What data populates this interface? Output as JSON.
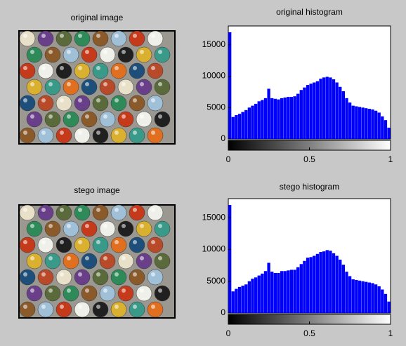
{
  "chart_data": [
    {
      "type": "image",
      "title": "original image"
    },
    {
      "type": "histogram",
      "title": "original histogram",
      "color": "#0000ff",
      "bins": [
        0,
        0.02,
        0.04,
        0.06,
        0.08,
        0.1,
        0.12,
        0.14,
        0.16,
        0.18,
        0.2,
        0.22,
        0.24,
        0.26,
        0.28,
        0.3,
        0.32,
        0.34,
        0.36,
        0.38,
        0.4,
        0.42,
        0.44,
        0.46,
        0.48,
        0.5,
        0.52,
        0.54,
        0.56,
        0.58,
        0.6,
        0.62,
        0.64,
        0.66,
        0.68,
        0.7,
        0.72,
        0.74,
        0.76,
        0.78,
        0.8,
        0.82,
        0.84,
        0.86,
        0.88,
        0.9,
        0.92,
        0.94,
        0.96,
        0.98,
        1
      ],
      "values": [
        17000,
        3500,
        3800,
        4000,
        4300,
        4600,
        5000,
        5300,
        5600,
        6000,
        6200,
        6500,
        8000,
        6500,
        6400,
        6300,
        6500,
        6600,
        6700,
        6700,
        6800,
        7200,
        7800,
        8200,
        8600,
        8800,
        9000,
        9200,
        9600,
        9800,
        9900,
        9800,
        9500,
        9000,
        8300,
        7600,
        6500,
        5800,
        5300,
        5200,
        5100,
        5000,
        4900,
        4800,
        4700,
        4500,
        4200,
        3600,
        3000,
        1800
      ],
      "xlim": [
        0,
        1
      ],
      "xticks": [
        0,
        0.5,
        1
      ],
      "ylim": [
        0,
        18000
      ],
      "yticks": [
        0,
        5000,
        10000,
        15000
      ]
    },
    {
      "type": "image",
      "title": "stego image"
    },
    {
      "type": "histogram",
      "title": "stego histogram",
      "color": "#0000ff",
      "bins": [
        0,
        0.02,
        0.04,
        0.06,
        0.08,
        0.1,
        0.12,
        0.14,
        0.16,
        0.18,
        0.2,
        0.22,
        0.24,
        0.26,
        0.28,
        0.3,
        0.32,
        0.34,
        0.36,
        0.38,
        0.4,
        0.42,
        0.44,
        0.46,
        0.48,
        0.5,
        0.52,
        0.54,
        0.56,
        0.58,
        0.6,
        0.62,
        0.64,
        0.66,
        0.68,
        0.7,
        0.72,
        0.74,
        0.76,
        0.78,
        0.8,
        0.82,
        0.84,
        0.86,
        0.88,
        0.9,
        0.92,
        0.94,
        0.96,
        0.98,
        1
      ],
      "values": [
        17000,
        3400,
        3800,
        4100,
        4300,
        4500,
        5000,
        5400,
        5600,
        5900,
        6200,
        6600,
        7900,
        6500,
        6300,
        6300,
        6600,
        6600,
        6700,
        6800,
        6800,
        7200,
        7700,
        8200,
        8700,
        8800,
        9000,
        9300,
        9600,
        9700,
        9900,
        9800,
        9400,
        9000,
        8400,
        7600,
        6500,
        5800,
        5300,
        5200,
        5100,
        5000,
        4900,
        4800,
        4700,
        4500,
        4200,
        3700,
        3000,
        1800
      ],
      "xlim": [
        0,
        1
      ],
      "xticks": [
        0,
        0.5,
        1
      ],
      "ylim": [
        0,
        18000
      ],
      "yticks": [
        0,
        5000,
        10000,
        15000
      ]
    }
  ]
}
